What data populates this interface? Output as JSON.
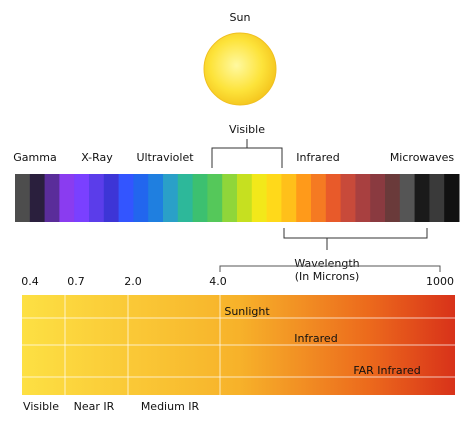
{
  "sun": {
    "label": "Sun"
  },
  "spectrum": {
    "visible": "Visible",
    "bands": [
      "Gamma",
      "X-Ray",
      "Ultraviolet",
      "Infrared",
      "Microwaves"
    ],
    "wavelength": [
      "Wavelength",
      "(In Microns)"
    ]
  },
  "scale": {
    "ticks": [
      "0.4",
      "0.7",
      "2.0",
      "4.0",
      "1000"
    ],
    "rows": [
      "Sunlight",
      "Infrared",
      "FAR Infrared"
    ],
    "regions": [
      "Visible",
      "Near IR",
      "Medium IR"
    ]
  }
}
